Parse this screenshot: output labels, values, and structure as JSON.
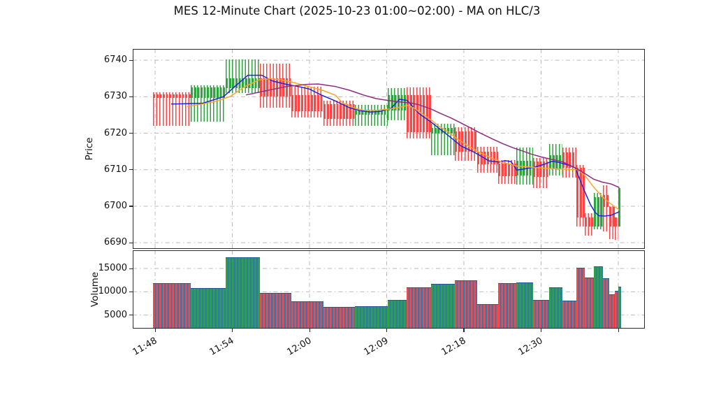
{
  "title": "MES 12-Minute Chart (2025-10-23 01:00~02:00) - MA on HLC/3",
  "chart_data": {
    "type": "candlestick_with_volume",
    "price_axis": {
      "label": "Price",
      "ticks": [
        6690,
        6700,
        6710,
        6720,
        6730,
        6740
      ],
      "range": [
        6688.3,
        6743.1
      ]
    },
    "volume_axis": {
      "label": "Volume",
      "ticks": [
        5000,
        10000,
        15000
      ],
      "range": [
        2100,
        18900
      ]
    },
    "x_axis": {
      "ticks": [
        {
          "pos": 0.0437,
          "label": "11:48"
        },
        {
          "pos": 0.1944,
          "label": "11:54"
        },
        {
          "pos": 0.3452,
          "label": "12:00"
        },
        {
          "pos": 0.4959,
          "label": "12:09"
        },
        {
          "pos": 0.6466,
          "label": "12:18"
        },
        {
          "pos": 0.7974,
          "label": "12:30"
        },
        {
          "pos": 0.9482,
          "label": ""
        }
      ]
    },
    "colors": {
      "up": "#2ca63c",
      "down": "#fa4646",
      "volume_alt": "#3178af",
      "volume_edge": "#1d5c8f",
      "ma_fast": "#2222dd",
      "ma_mid": "#ffa428",
      "ma_slow": "#8c2d82",
      "grid": "#bbbbbb",
      "spine": "#2b2b2b"
    },
    "clusters": [
      {
        "x0": 0.0396,
        "x1": 0.1132,
        "dir": "down",
        "open": 6730.6,
        "high": 6731.2,
        "low": 6722.0,
        "close": 6729.6,
        "volume": 11900
      },
      {
        "x0": 0.1132,
        "x1": 0.181,
        "dir": "up",
        "open": 6729.6,
        "high": 6733.2,
        "low": 6723.2,
        "close": 6732.5,
        "volume": 10750
      },
      {
        "x0": 0.181,
        "x1": 0.2479,
        "dir": "up",
        "open": 6732.4,
        "high": 6740.3,
        "low": 6731.0,
        "close": 6735.0,
        "volume": 17400
      },
      {
        "x0": 0.2479,
        "x1": 0.3101,
        "dir": "down",
        "open": 6735.0,
        "high": 6739.0,
        "low": 6727.0,
        "close": 6730.0,
        "volume": 9800
      },
      {
        "x0": 0.3101,
        "x1": 0.3729,
        "dir": "down",
        "open": 6730.4,
        "high": 6732.7,
        "low": 6724.4,
        "close": 6726.0,
        "volume": 8000
      },
      {
        "x0": 0.3729,
        "x1": 0.4343,
        "dir": "down",
        "open": 6728.0,
        "high": 6729.0,
        "low": 6722.0,
        "close": 6724.0,
        "volume": 6750
      },
      {
        "x0": 0.4343,
        "x1": 0.498,
        "dir": "up",
        "open": 6725.0,
        "high": 6727.7,
        "low": 6722.0,
        "close": 6726.3,
        "volume": 6900
      },
      {
        "x0": 0.498,
        "x1": 0.5344,
        "dir": "up",
        "open": 6726.3,
        "high": 6732.3,
        "low": 6723.5,
        "close": 6730.5,
        "volume": 8250
      },
      {
        "x0": 0.5344,
        "x1": 0.5822,
        "dir": "down",
        "open": 6730.5,
        "high": 6732.5,
        "low": 6718.5,
        "close": 6720.3,
        "volume": 11000
      },
      {
        "x0": 0.5822,
        "x1": 0.6285,
        "dir": "up",
        "open": 6720.0,
        "high": 6722.6,
        "low": 6714.0,
        "close": 6721.5,
        "volume": 11750
      },
      {
        "x0": 0.6285,
        "x1": 0.673,
        "dir": "down",
        "open": 6720.5,
        "high": 6721.6,
        "low": 6712.4,
        "close": 6715.0,
        "volume": 12400
      },
      {
        "x0": 0.673,
        "x1": 0.7131,
        "dir": "down",
        "open": 6715.0,
        "high": 6716.2,
        "low": 6709.2,
        "close": 6711.5,
        "volume": 7300
      },
      {
        "x0": 0.7131,
        "x1": 0.749,
        "dir": "down",
        "open": 6711.6,
        "high": 6712.6,
        "low": 6706.2,
        "close": 6708.3,
        "volume": 11900
      },
      {
        "x0": 0.749,
        "x1": 0.7813,
        "dir": "up",
        "open": 6708.5,
        "high": 6716.0,
        "low": 6706.0,
        "close": 6712.5,
        "volume": 12050
      },
      {
        "x0": 0.7813,
        "x1": 0.8131,
        "dir": "down",
        "open": 6712.2,
        "high": 6713.2,
        "low": 6705.0,
        "close": 6708.0,
        "volume": 8250
      },
      {
        "x0": 0.8131,
        "x1": 0.839,
        "dir": "up",
        "open": 6710.3,
        "high": 6717.0,
        "low": 6708.4,
        "close": 6714.0,
        "volume": 10900
      },
      {
        "x0": 0.839,
        "x1": 0.8663,
        "dir": "down",
        "open": 6714.8,
        "high": 6716.1,
        "low": 6707.8,
        "close": 6710.6,
        "volume": 8050
      },
      {
        "x0": 0.8663,
        "x1": 0.8823,
        "dir": "down",
        "open": 6710.6,
        "high": 6711.3,
        "low": 6694.4,
        "close": 6697.0,
        "volume": 15150
      },
      {
        "x0": 0.8823,
        "x1": 0.9004,
        "dir": "down",
        "open": 6696.9,
        "high": 6698.0,
        "low": 6692.0,
        "close": 6694.5,
        "volume": 13050
      },
      {
        "x0": 0.9004,
        "x1": 0.9186,
        "dir": "up",
        "open": 6694.5,
        "high": 6703.6,
        "low": 6693.7,
        "close": 6702.5,
        "volume": 15500
      },
      {
        "x0": 0.9186,
        "x1": 0.93,
        "dir": "down",
        "open": 6703.0,
        "high": 6705.7,
        "low": 6693.0,
        "close": 6699.8,
        "volume": 12900
      },
      {
        "x0": 0.93,
        "x1": 0.9413,
        "dir": "down",
        "open": 6699.8,
        "high": 6700.0,
        "low": 6691.0,
        "close": 6694.5,
        "volume": 9400
      },
      {
        "x0": 0.9413,
        "x1": 0.9482,
        "dir": "down",
        "open": 6696.9,
        "high": 6697.0,
        "low": 6690.7,
        "close": 6694.4,
        "volume": 10250
      },
      {
        "x0": 0.9475,
        "x1": 0.9535,
        "dir": "up",
        "open": 6694.4,
        "high": 6705.2,
        "low": 6694.4,
        "close": 6705.0,
        "volume": 11150
      }
    ],
    "ma_lines": [
      {
        "name": "ma-fast",
        "color_key": "ma_fast",
        "points": [
          [
            0.075,
            6728.0
          ],
          [
            0.136,
            6728.2
          ],
          [
            0.177,
            6730.0
          ],
          [
            0.205,
            6733.5
          ],
          [
            0.225,
            6735.9
          ],
          [
            0.252,
            6735.9
          ],
          [
            0.273,
            6734.3
          ],
          [
            0.3,
            6733.4
          ],
          [
            0.327,
            6732.7
          ],
          [
            0.345,
            6732.1
          ],
          [
            0.368,
            6730.5
          ],
          [
            0.393,
            6729.0
          ],
          [
            0.423,
            6727.0
          ],
          [
            0.443,
            6726.2
          ],
          [
            0.464,
            6725.8
          ],
          [
            0.484,
            6726.0
          ],
          [
            0.505,
            6726.9
          ],
          [
            0.521,
            6729.3
          ],
          [
            0.536,
            6729.0
          ],
          [
            0.559,
            6725.4
          ],
          [
            0.583,
            6723.0
          ],
          [
            0.614,
            6719.6
          ],
          [
            0.641,
            6716.5
          ],
          [
            0.668,
            6714.7
          ],
          [
            0.696,
            6712.4
          ],
          [
            0.716,
            6712.1
          ],
          [
            0.727,
            6712.5
          ],
          [
            0.739,
            6712.2
          ],
          [
            0.75,
            6709.9
          ],
          [
            0.764,
            6710.2
          ],
          [
            0.784,
            6710.7
          ],
          [
            0.802,
            6711.4
          ],
          [
            0.819,
            6712.3
          ],
          [
            0.832,
            6712.0
          ],
          [
            0.853,
            6711.2
          ],
          [
            0.864,
            6710.5
          ],
          [
            0.88,
            6704.9
          ],
          [
            0.894,
            6700.4
          ],
          [
            0.903,
            6698.3
          ],
          [
            0.91,
            6697.4
          ],
          [
            0.922,
            6697.3
          ],
          [
            0.934,
            6697.5
          ],
          [
            0.95,
            6698.5
          ]
        ]
      },
      {
        "name": "ma-mid",
        "color_key": "ma_mid",
        "points": [
          [
            0.106,
            6727.3
          ],
          [
            0.136,
            6728.0
          ],
          [
            0.164,
            6728.8
          ],
          [
            0.191,
            6730.1
          ],
          [
            0.218,
            6732.7
          ],
          [
            0.246,
            6734.6
          ],
          [
            0.266,
            6734.9
          ],
          [
            0.287,
            6734.7
          ],
          [
            0.314,
            6733.9
          ],
          [
            0.341,
            6732.9
          ],
          [
            0.372,
            6731.7
          ],
          [
            0.396,
            6730.4
          ],
          [
            0.409,
            6728.4
          ],
          [
            0.43,
            6727.0
          ],
          [
            0.452,
            6726.3
          ],
          [
            0.475,
            6726.3
          ],
          [
            0.498,
            6726.6
          ],
          [
            0.52,
            6727.1
          ],
          [
            0.536,
            6727.6
          ],
          [
            0.548,
            6727.0
          ],
          [
            0.562,
            6725.6
          ],
          [
            0.584,
            6723.5
          ],
          [
            0.598,
            6721.9
          ],
          [
            0.617,
            6720.3
          ],
          [
            0.634,
            6718.4
          ],
          [
            0.652,
            6716.8
          ],
          [
            0.675,
            6714.9
          ],
          [
            0.699,
            6713.3
          ],
          [
            0.72,
            6712.1
          ],
          [
            0.75,
            6711.0
          ],
          [
            0.778,
            6710.7
          ],
          [
            0.805,
            6710.4
          ],
          [
            0.853,
            6710.1
          ],
          [
            0.87,
            6710.0
          ],
          [
            0.884,
            6708.2
          ],
          [
            0.898,
            6705.6
          ],
          [
            0.914,
            6703.0
          ],
          [
            0.93,
            6701.0
          ],
          [
            0.95,
            6699.0
          ]
        ]
      },
      {
        "name": "ma-slow",
        "color_key": "ma_slow",
        "points": [
          [
            0.221,
            6730.5
          ],
          [
            0.259,
            6731.6
          ],
          [
            0.3,
            6732.8
          ],
          [
            0.341,
            6733.4
          ],
          [
            0.362,
            6733.5
          ],
          [
            0.396,
            6732.8
          ],
          [
            0.423,
            6731.8
          ],
          [
            0.45,
            6730.5
          ],
          [
            0.475,
            6729.5
          ],
          [
            0.498,
            6729.0
          ],
          [
            0.521,
            6728.6
          ],
          [
            0.543,
            6728.3
          ],
          [
            0.559,
            6727.8
          ],
          [
            0.583,
            6726.6
          ],
          [
            0.6,
            6725.5
          ],
          [
            0.621,
            6724.2
          ],
          [
            0.641,
            6722.8
          ],
          [
            0.662,
            6721.3
          ],
          [
            0.682,
            6719.8
          ],
          [
            0.703,
            6718.4
          ],
          [
            0.723,
            6717.1
          ],
          [
            0.743,
            6716.0
          ],
          [
            0.764,
            6715.0
          ],
          [
            0.78,
            6714.2
          ],
          [
            0.798,
            6713.5
          ],
          [
            0.819,
            6712.8
          ],
          [
            0.839,
            6712.2
          ],
          [
            0.857,
            6711.0
          ],
          [
            0.87,
            6710.0
          ],
          [
            0.887,
            6708.6
          ],
          [
            0.9,
            6707.4
          ],
          [
            0.917,
            6706.6
          ],
          [
            0.934,
            6706.1
          ],
          [
            0.95,
            6705.1
          ]
        ]
      }
    ]
  }
}
